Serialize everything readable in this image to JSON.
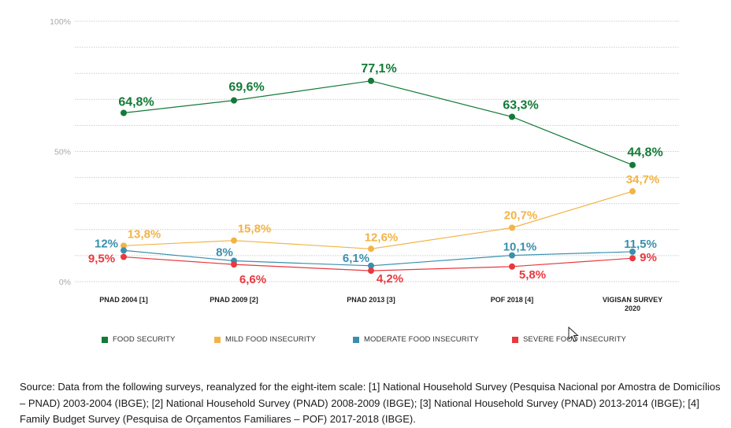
{
  "chart_data": {
    "type": "line",
    "categories": [
      "PNAD 2004 [1]",
      "PNAD 2009 [2]",
      "PNAD 2013 [3]",
      "POF 2018 [4]",
      "VIGISAN SURVEY\n2020"
    ],
    "ylim": [
      0,
      100
    ],
    "yticks": [
      {
        "value": 0,
        "label": "0%"
      },
      {
        "value": 50,
        "label": "50%"
      },
      {
        "value": 100,
        "label": "100%"
      }
    ],
    "grid": true,
    "legend_position": "bottom",
    "series": [
      {
        "name": "FOOD SECURITY",
        "color": "#137a38",
        "values": [
          64.8,
          69.6,
          77.1,
          63.3,
          44.8
        ],
        "labels": [
          "64,8%",
          "69,6%",
          "77,1%",
          "63,3%",
          "44,8%"
        ]
      },
      {
        "name": "MILD FOOD INSECURITY",
        "color": "#f2b446",
        "values": [
          13.8,
          15.8,
          12.6,
          20.7,
          34.7
        ],
        "labels": [
          "13,8%",
          "15,8%",
          "12,6%",
          "20,7%",
          "34,7%"
        ]
      },
      {
        "name": "MODERATE FOOD INSECURITY",
        "color": "#3a8fae",
        "values": [
          12,
          8,
          6.1,
          10.1,
          11.5
        ],
        "labels": [
          "12%",
          "8%",
          "6,1%",
          "10,1%",
          "11,5%"
        ]
      },
      {
        "name": "SEVERE FOOD INSECURITY",
        "color": "#e8393f",
        "values": [
          9.5,
          6.6,
          4.2,
          5.8,
          9
        ],
        "labels": [
          "9,5%",
          "6,6%",
          "4,2%",
          "5,8%",
          "9%"
        ]
      }
    ]
  },
  "source_text": "Source: Data from the following surveys, reanalyzed for the eight-item scale: [1] National Household Survey (Pesquisa Nacional por Amostra de Domicílios – PNAD) 2003-2004 (IBGE); [2] National Household Survey (PNAD) 2008-2009 (IBGE); [3] National Household Survey (PNAD) 2013-2014 (IBGE); [4] Family Budget Survey (Pesquisa de Orçamentos Familiares – POF) 2017-2018 (IBGE)."
}
